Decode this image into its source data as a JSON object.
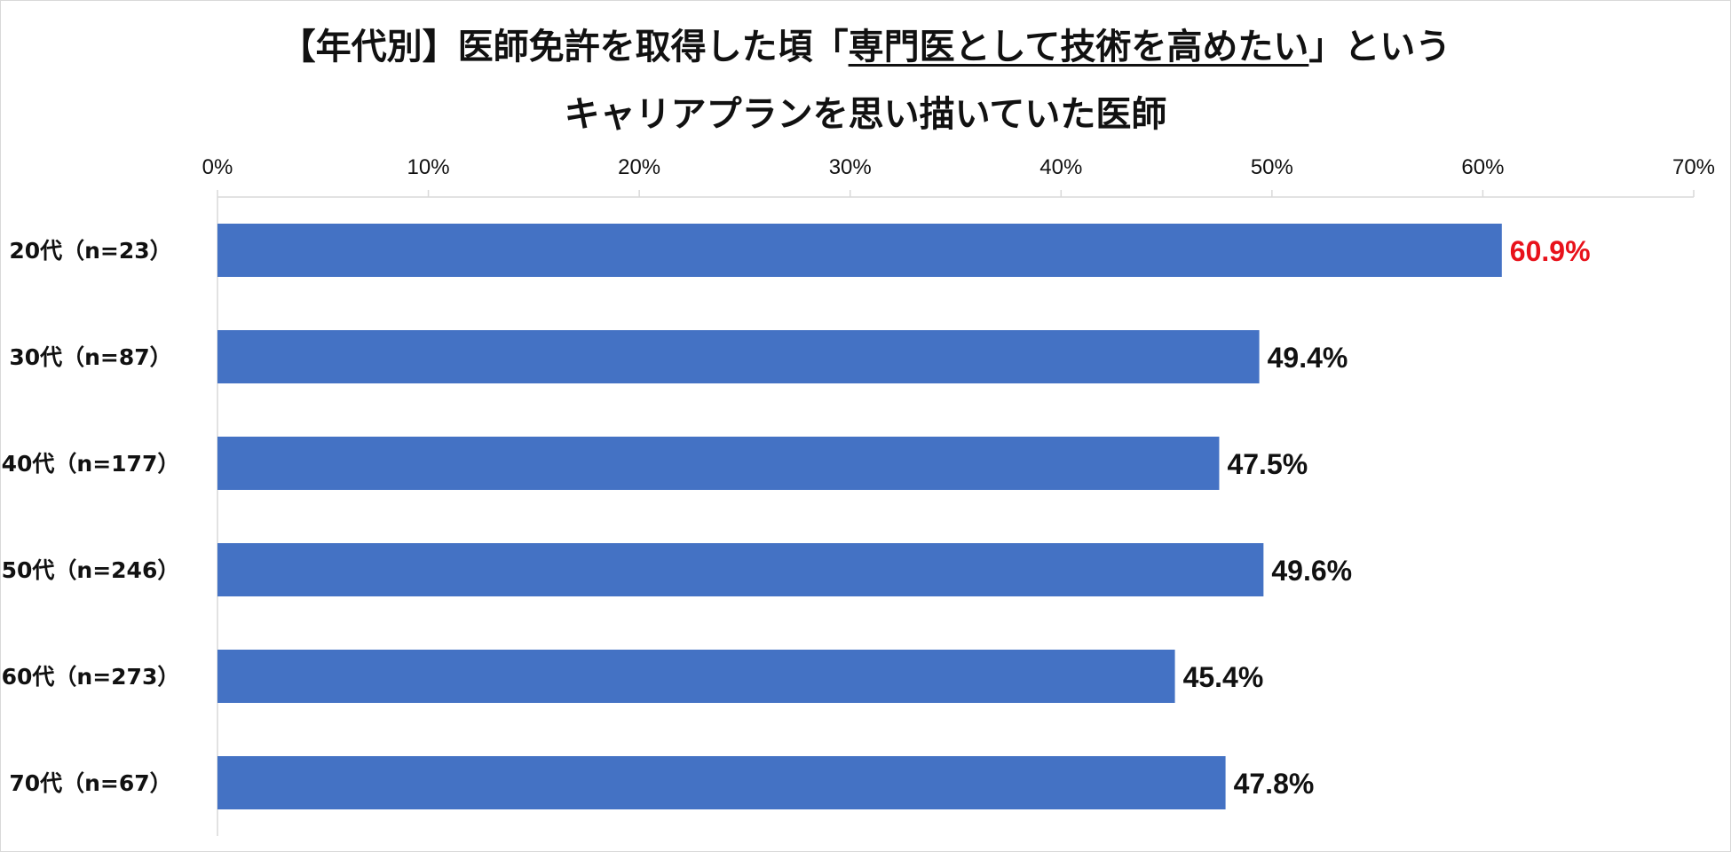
{
  "title": {
    "line1_prefix": "【年代別】医師免許を取得した頃「",
    "line1_highlight": "専門医として技術を高めたい",
    "line1_suffix": "」という",
    "line2": "キャリアプランを思い描いていた医師"
  },
  "chart_data": {
    "type": "bar",
    "orientation": "horizontal",
    "categories": [
      "20代（n=23）",
      "30代（n=87）",
      "40代（n=177）",
      "50代（n=246）",
      "60代（n=273）",
      "70代（n=67）"
    ],
    "values": [
      60.9,
      49.4,
      47.5,
      49.6,
      45.4,
      47.8
    ],
    "value_labels": [
      "60.9%",
      "49.4%",
      "47.5%",
      "49.6%",
      "45.4%",
      "47.8%"
    ],
    "xlim": [
      0,
      70
    ],
    "x_ticks": [
      "0%",
      "10%",
      "20%",
      "30%",
      "40%",
      "50%",
      "60%",
      "70%"
    ],
    "x_axis_position": "top",
    "grid": false,
    "legend": "none",
    "bar_color": "#4472C4",
    "label_color": "#111111",
    "highlight_label_color": "#E8121B",
    "highlight_index": 0
  }
}
